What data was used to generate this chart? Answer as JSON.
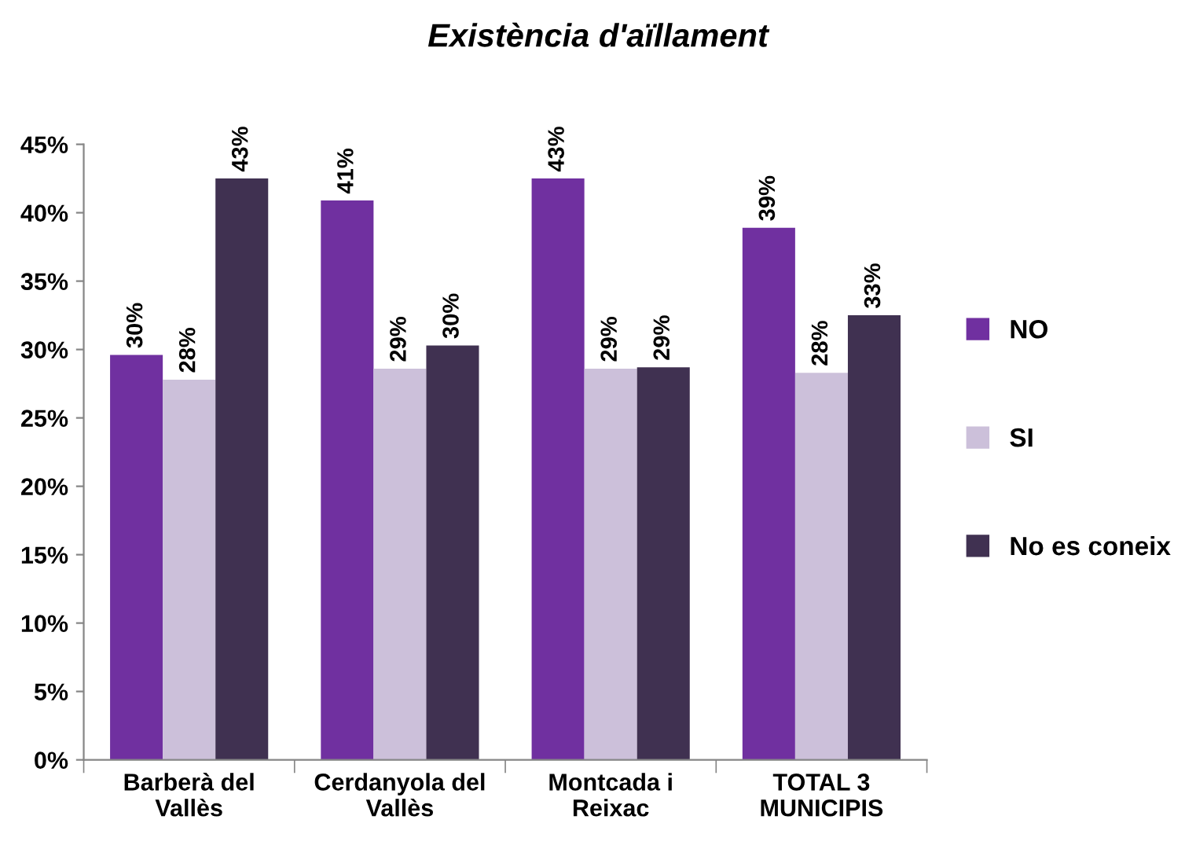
{
  "chart_data": {
    "type": "bar",
    "title": "Existència d'aïllament",
    "categories": [
      "Barberà del Vallès",
      "Cerdanyola del Vallès",
      "Montcada i Reixac",
      "TOTAL 3 MUNICIPIS"
    ],
    "series": [
      {
        "name": "NO",
        "color": "#7030a0",
        "values": [
          29.6,
          40.9,
          42.5,
          38.9
        ],
        "value_labels": [
          "30%",
          "41%",
          "43%",
          "39%"
        ]
      },
      {
        "name": "SI",
        "color": "#ccc0da",
        "values": [
          27.8,
          28.6,
          28.6,
          28.3
        ],
        "value_labels": [
          "28%",
          "29%",
          "29%",
          "28%"
        ]
      },
      {
        "name": "No es coneix",
        "color": "#403151",
        "values": [
          42.5,
          30.3,
          28.7,
          32.5
        ],
        "value_labels": [
          "43%",
          "30%",
          "29%",
          "33%"
        ]
      }
    ],
    "ylim": [
      0,
      45
    ],
    "yticks": [
      {
        "value": 0,
        "label": "0%"
      },
      {
        "value": 5,
        "label": "5%"
      },
      {
        "value": 10,
        "label": "10%"
      },
      {
        "value": 15,
        "label": "15%"
      },
      {
        "value": 20,
        "label": "20%"
      },
      {
        "value": 25,
        "label": "25%"
      },
      {
        "value": 30,
        "label": "30%"
      },
      {
        "value": 35,
        "label": "35%"
      },
      {
        "value": 40,
        "label": "40%"
      },
      {
        "value": 45,
        "label": "45%"
      }
    ],
    "grid": false,
    "legend": "right"
  }
}
